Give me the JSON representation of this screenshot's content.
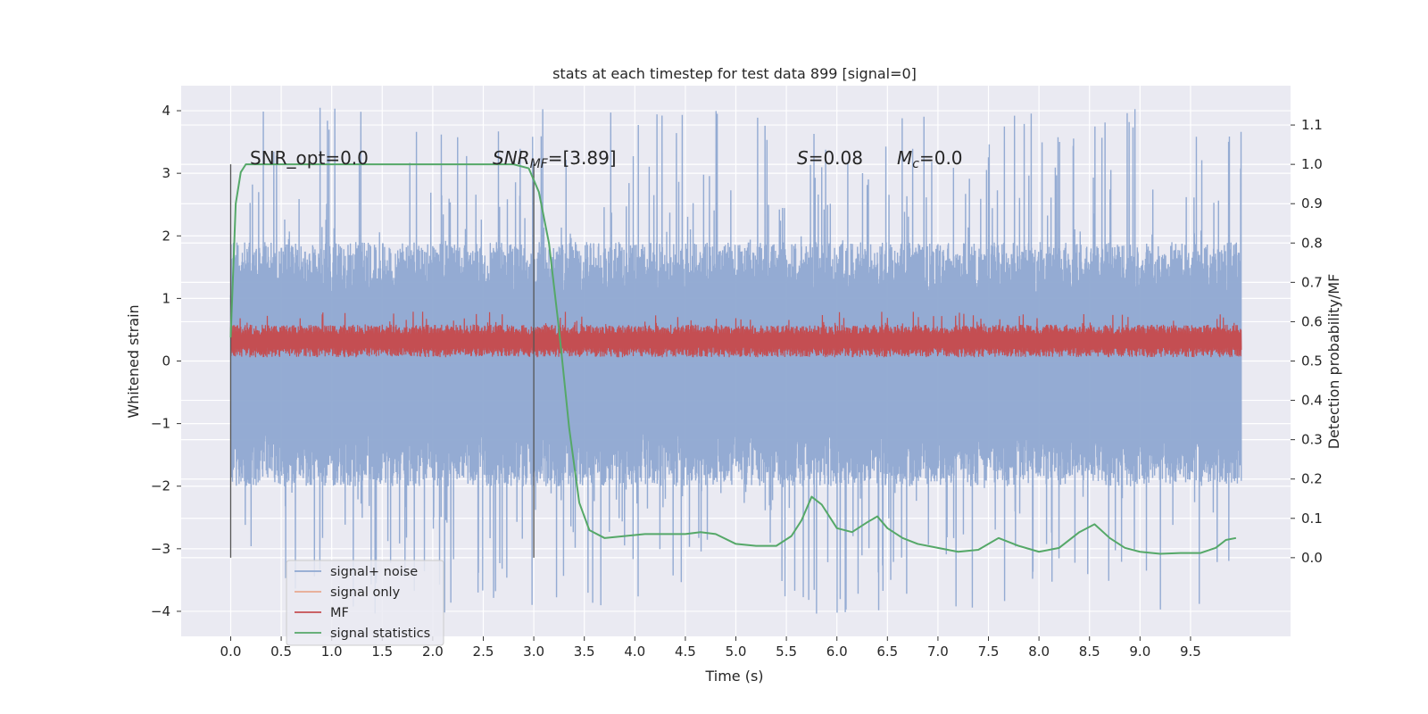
{
  "chart_data": {
    "type": "line",
    "title": "stats at each timestep for test data 899 [signal=0]",
    "xlabel": "Time (s)",
    "ylabel": "Whitened strain",
    "y2label": "Detection probability/MF",
    "xlim": [
      -0.49,
      10.49
    ],
    "ylim": [
      -4.4,
      4.4
    ],
    "y2lim": [
      -0.2,
      1.2
    ],
    "xticks": [
      "0.0",
      "0.5",
      "1.0",
      "1.5",
      "2.0",
      "2.5",
      "3.0",
      "3.5",
      "4.0",
      "4.5",
      "5.0",
      "5.5",
      "6.0",
      "6.5",
      "7.0",
      "7.5",
      "8.0",
      "8.5",
      "9.0",
      "9.5"
    ],
    "yticks": [
      "−4",
      "−3",
      "−2",
      "−1",
      "0",
      "1",
      "2",
      "3",
      "4"
    ],
    "y2ticks": [
      "0.0",
      "0.1",
      "0.2",
      "0.3",
      "0.4",
      "0.5",
      "0.6",
      "0.7",
      "0.8",
      "0.9",
      "1.0",
      "1.1"
    ],
    "grid": true,
    "legend_position": "lower-left",
    "annotations": {
      "snr_opt": "SNR_opt=0.0",
      "snr_mf_label": "SNR",
      "snr_mf_sub": "MF",
      "snr_mf_value": "=[3.89]",
      "s_label": "S",
      "s_value": "=0.08",
      "mc_label": "M",
      "mc_sub": "c",
      "mc_value": "=0.0"
    },
    "vlines": [
      0.0,
      3.0
    ],
    "noise_envelope": {
      "x_range": [
        0.0,
        10.0
      ],
      "typical_upper": 1.9,
      "typical_lower": -2.0,
      "max": 4.05,
      "min": -4.05
    },
    "series": [
      {
        "name": "signal+ noise",
        "color": "#8fa8d1",
        "kind": "noise"
      },
      {
        "name": "signal only",
        "color": "#e8a98f",
        "kind": "flat",
        "values_note_hidden": true
      },
      {
        "name": "MF",
        "color": "#c44e52",
        "kind": "band",
        "y_center": 0.32,
        "y_spread": 0.26,
        "axis": "left"
      },
      {
        "name": "signal statistics",
        "color": "#55a868",
        "kind": "line",
        "axis": "right",
        "x": [
          0.0,
          0.05,
          0.1,
          0.15,
          0.3,
          0.6,
          1.0,
          1.5,
          2.0,
          2.5,
          2.8,
          2.95,
          3.05,
          3.15,
          3.25,
          3.35,
          3.45,
          3.55,
          3.7,
          3.9,
          4.1,
          4.3,
          4.5,
          4.65,
          4.8,
          5.0,
          5.2,
          5.4,
          5.55,
          5.65,
          5.75,
          5.85,
          6.0,
          6.15,
          6.3,
          6.4,
          6.5,
          6.65,
          6.8,
          7.0,
          7.2,
          7.4,
          7.6,
          7.8,
          8.0,
          8.2,
          8.4,
          8.55,
          8.7,
          8.85,
          9.0,
          9.2,
          9.4,
          9.6,
          9.75,
          9.85,
          9.95
        ],
        "y": [
          0.56,
          0.9,
          0.98,
          1.0,
          1.0,
          1.0,
          1.0,
          1.0,
          1.0,
          1.0,
          1.0,
          0.99,
          0.93,
          0.8,
          0.58,
          0.33,
          0.14,
          0.07,
          0.05,
          0.055,
          0.06,
          0.06,
          0.06,
          0.065,
          0.06,
          0.035,
          0.03,
          0.03,
          0.055,
          0.095,
          0.155,
          0.135,
          0.075,
          0.065,
          0.09,
          0.105,
          0.075,
          0.05,
          0.035,
          0.025,
          0.015,
          0.02,
          0.05,
          0.03,
          0.015,
          0.025,
          0.065,
          0.085,
          0.05,
          0.025,
          0.015,
          0.01,
          0.012,
          0.012,
          0.025,
          0.045,
          0.05
        ]
      }
    ]
  }
}
